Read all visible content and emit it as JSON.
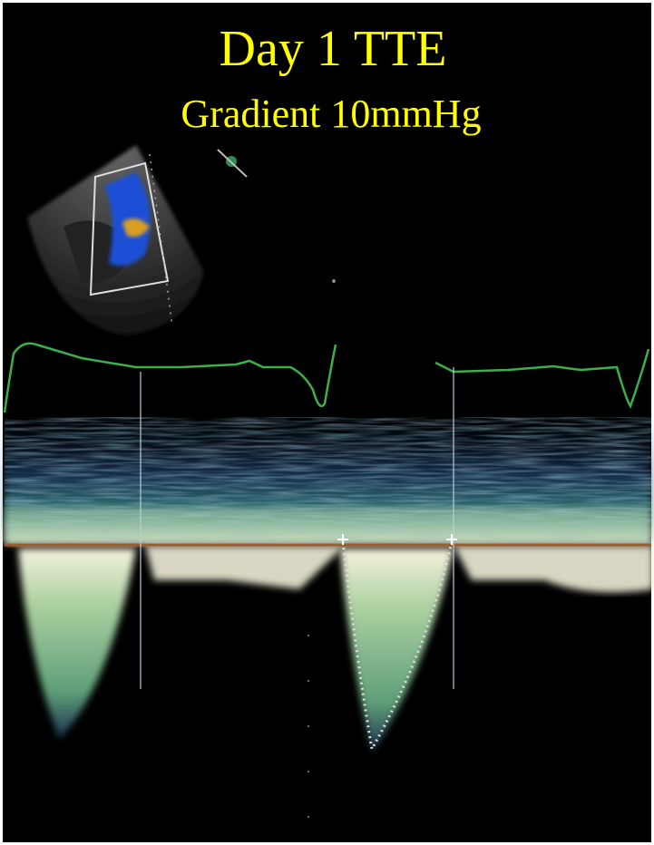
{
  "title": "Day 1 TTE",
  "subtitle": "Gradient 10mmHg"
}
